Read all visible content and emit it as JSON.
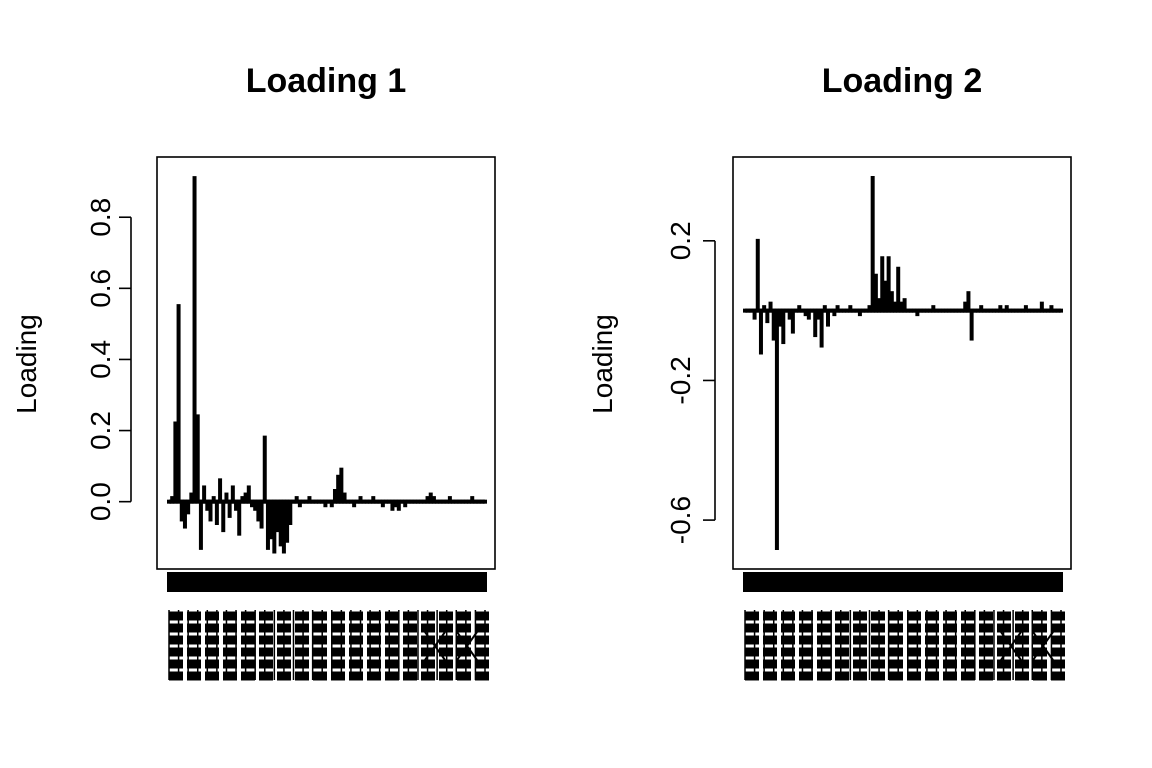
{
  "chart_data": [
    {
      "type": "bar",
      "title": "Loading 1",
      "xlabel": "",
      "ylabel": "Loading",
      "ylim": [
        -0.15,
        0.93
      ],
      "yticks": [
        0.0,
        0.2,
        0.4,
        0.6,
        0.8
      ],
      "ytick_labels": [
        "0.0",
        "0.2",
        "0.4",
        "0.6",
        "0.8"
      ],
      "grid": false,
      "n_variables": 100,
      "values": [
        0.0,
        0.01,
        0.22,
        0.55,
        -0.05,
        -0.07,
        -0.03,
        0.02,
        0.91,
        0.24,
        -0.13,
        0.04,
        -0.02,
        -0.05,
        0.01,
        -0.06,
        0.06,
        -0.08,
        0.02,
        -0.04,
        0.04,
        -0.02,
        -0.09,
        0.01,
        0.02,
        0.04,
        -0.01,
        -0.02,
        -0.05,
        -0.07,
        0.18,
        -0.13,
        -0.1,
        -0.14,
        -0.08,
        -0.12,
        -0.14,
        -0.11,
        -0.06,
        0.0,
        0.01,
        -0.01,
        0.0,
        0.0,
        0.01,
        0.0,
        0.0,
        0.0,
        0.0,
        -0.01,
        0.0,
        -0.01,
        0.03,
        0.07,
        0.09,
        0.02,
        0.0,
        0.0,
        -0.01,
        0.0,
        0.01,
        0.0,
        0.0,
        0.0,
        0.01,
        0.0,
        0.0,
        -0.01,
        0.0,
        0.0,
        -0.02,
        -0.01,
        -0.02,
        0.0,
        -0.01,
        0.0,
        0.0,
        0.0,
        0.0,
        0.0,
        0.0,
        0.01,
        0.02,
        0.01,
        0.0,
        0.0,
        0.0,
        0.0,
        0.01,
        0.0,
        0.0,
        0.0,
        0.0,
        0.0,
        0.0,
        0.01,
        0.0,
        0.0,
        0.0,
        0.0
      ]
    },
    {
      "type": "bar",
      "title": "Loading 2",
      "xlabel": "",
      "ylabel": "Loading",
      "ylim": [
        -0.7,
        0.4
      ],
      "yticks": [
        -0.6,
        -0.2,
        0.2
      ],
      "ytick_labels": [
        "-0.6",
        "-0.2",
        "0.2"
      ],
      "grid": false,
      "n_variables": 100,
      "values": [
        0.0,
        0.0,
        0.0,
        -0.02,
        0.2,
        -0.12,
        0.01,
        -0.03,
        0.02,
        -0.08,
        -0.68,
        -0.04,
        -0.09,
        0.0,
        -0.02,
        -0.06,
        0.0,
        0.01,
        0.0,
        -0.01,
        -0.02,
        0.0,
        -0.07,
        -0.02,
        -0.1,
        0.01,
        -0.04,
        0.0,
        -0.01,
        0.01,
        0.0,
        0.0,
        0.0,
        0.01,
        0.0,
        0.0,
        -0.01,
        0.0,
        0.0,
        0.01,
        0.38,
        0.1,
        0.03,
        0.15,
        0.08,
        0.15,
        0.05,
        0.02,
        0.12,
        0.02,
        0.03,
        0.0,
        0.0,
        0.0,
        -0.01,
        0.0,
        0.0,
        0.0,
        0.0,
        0.01,
        0.0,
        0.0,
        0.0,
        0.0,
        0.0,
        0.0,
        0.0,
        0.0,
        0.0,
        0.02,
        0.05,
        -0.08,
        0.0,
        0.0,
        0.01,
        0.0,
        0.0,
        0.0,
        0.0,
        0.0,
        0.01,
        0.0,
        0.01,
        0.0,
        0.0,
        0.0,
        0.0,
        0.0,
        0.01,
        0.0,
        0.0,
        0.0,
        0.0,
        0.02,
        0.0,
        0.0,
        0.01,
        0.0,
        0.0,
        0.0
      ]
    }
  ]
}
